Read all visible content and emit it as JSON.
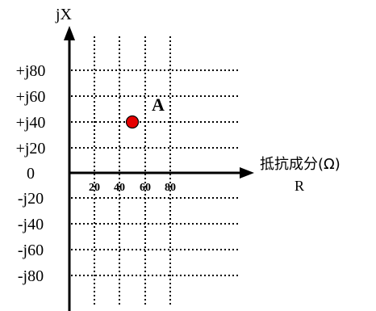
{
  "diagram": {
    "y_axis_label": "jX",
    "x_axis_label": "抵抗成分(Ω)",
    "x_axis_sublabel": "R",
    "origin_label": "0",
    "x_ticks": [
      "20",
      "40",
      "60",
      "80"
    ],
    "y_ticks_positive": [
      "+j20",
      "+j40",
      "+j60",
      "+j80"
    ],
    "y_ticks_negative": [
      "-j20",
      "-j40",
      "-j60",
      "-j80"
    ],
    "point": {
      "label": "A",
      "r": 50,
      "x": 40,
      "color": "#e60000"
    },
    "colors": {
      "axis": "#000000",
      "grid": "#000000",
      "point": "#e60000"
    }
  }
}
